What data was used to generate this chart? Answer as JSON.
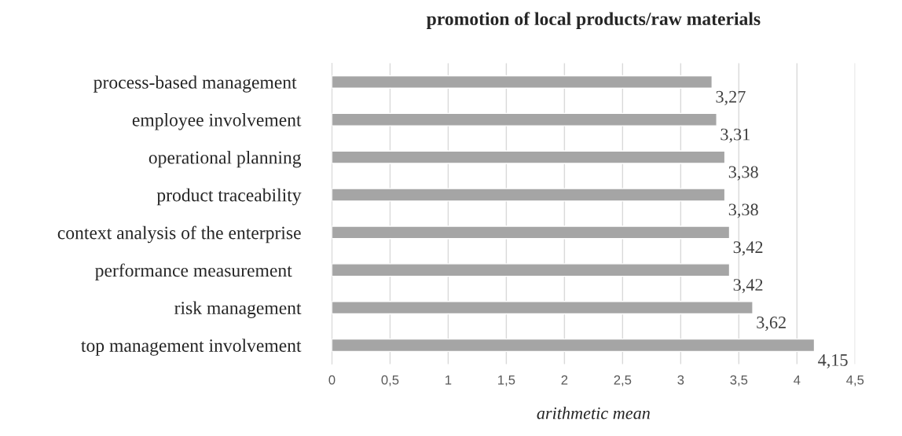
{
  "chart_data": {
    "type": "bar",
    "orientation": "horizontal",
    "title": "promotion of local products/raw materials",
    "xlabel": "arithmetic mean",
    "categories": [
      "process-based management ",
      "employee involvement",
      "operational planning",
      "product traceability",
      "context analysis of the enterprise",
      "performance measurement  ",
      "risk management",
      "top management involvement"
    ],
    "values": [
      3.27,
      3.31,
      3.38,
      3.38,
      3.42,
      3.42,
      3.62,
      4.15
    ],
    "value_labels": [
      "3,27",
      "3,31",
      "3,38",
      "3,38",
      "3,42",
      "3,42",
      "3,62",
      "4,15"
    ],
    "color": "#a5a5a5",
    "xlim": [
      0,
      4.5
    ],
    "xticks": [
      0,
      {
        "value": 0.5,
        "label": "0,5"
      },
      1,
      {
        "value": 1.5,
        "label": "1,5"
      },
      2,
      {
        "value": 2.5,
        "label": "2,5"
      },
      3,
      {
        "value": 3.5,
        "label": "3,5"
      },
      4,
      {
        "value": 4.5,
        "label": "4,5"
      }
    ],
    "grid": "x"
  }
}
